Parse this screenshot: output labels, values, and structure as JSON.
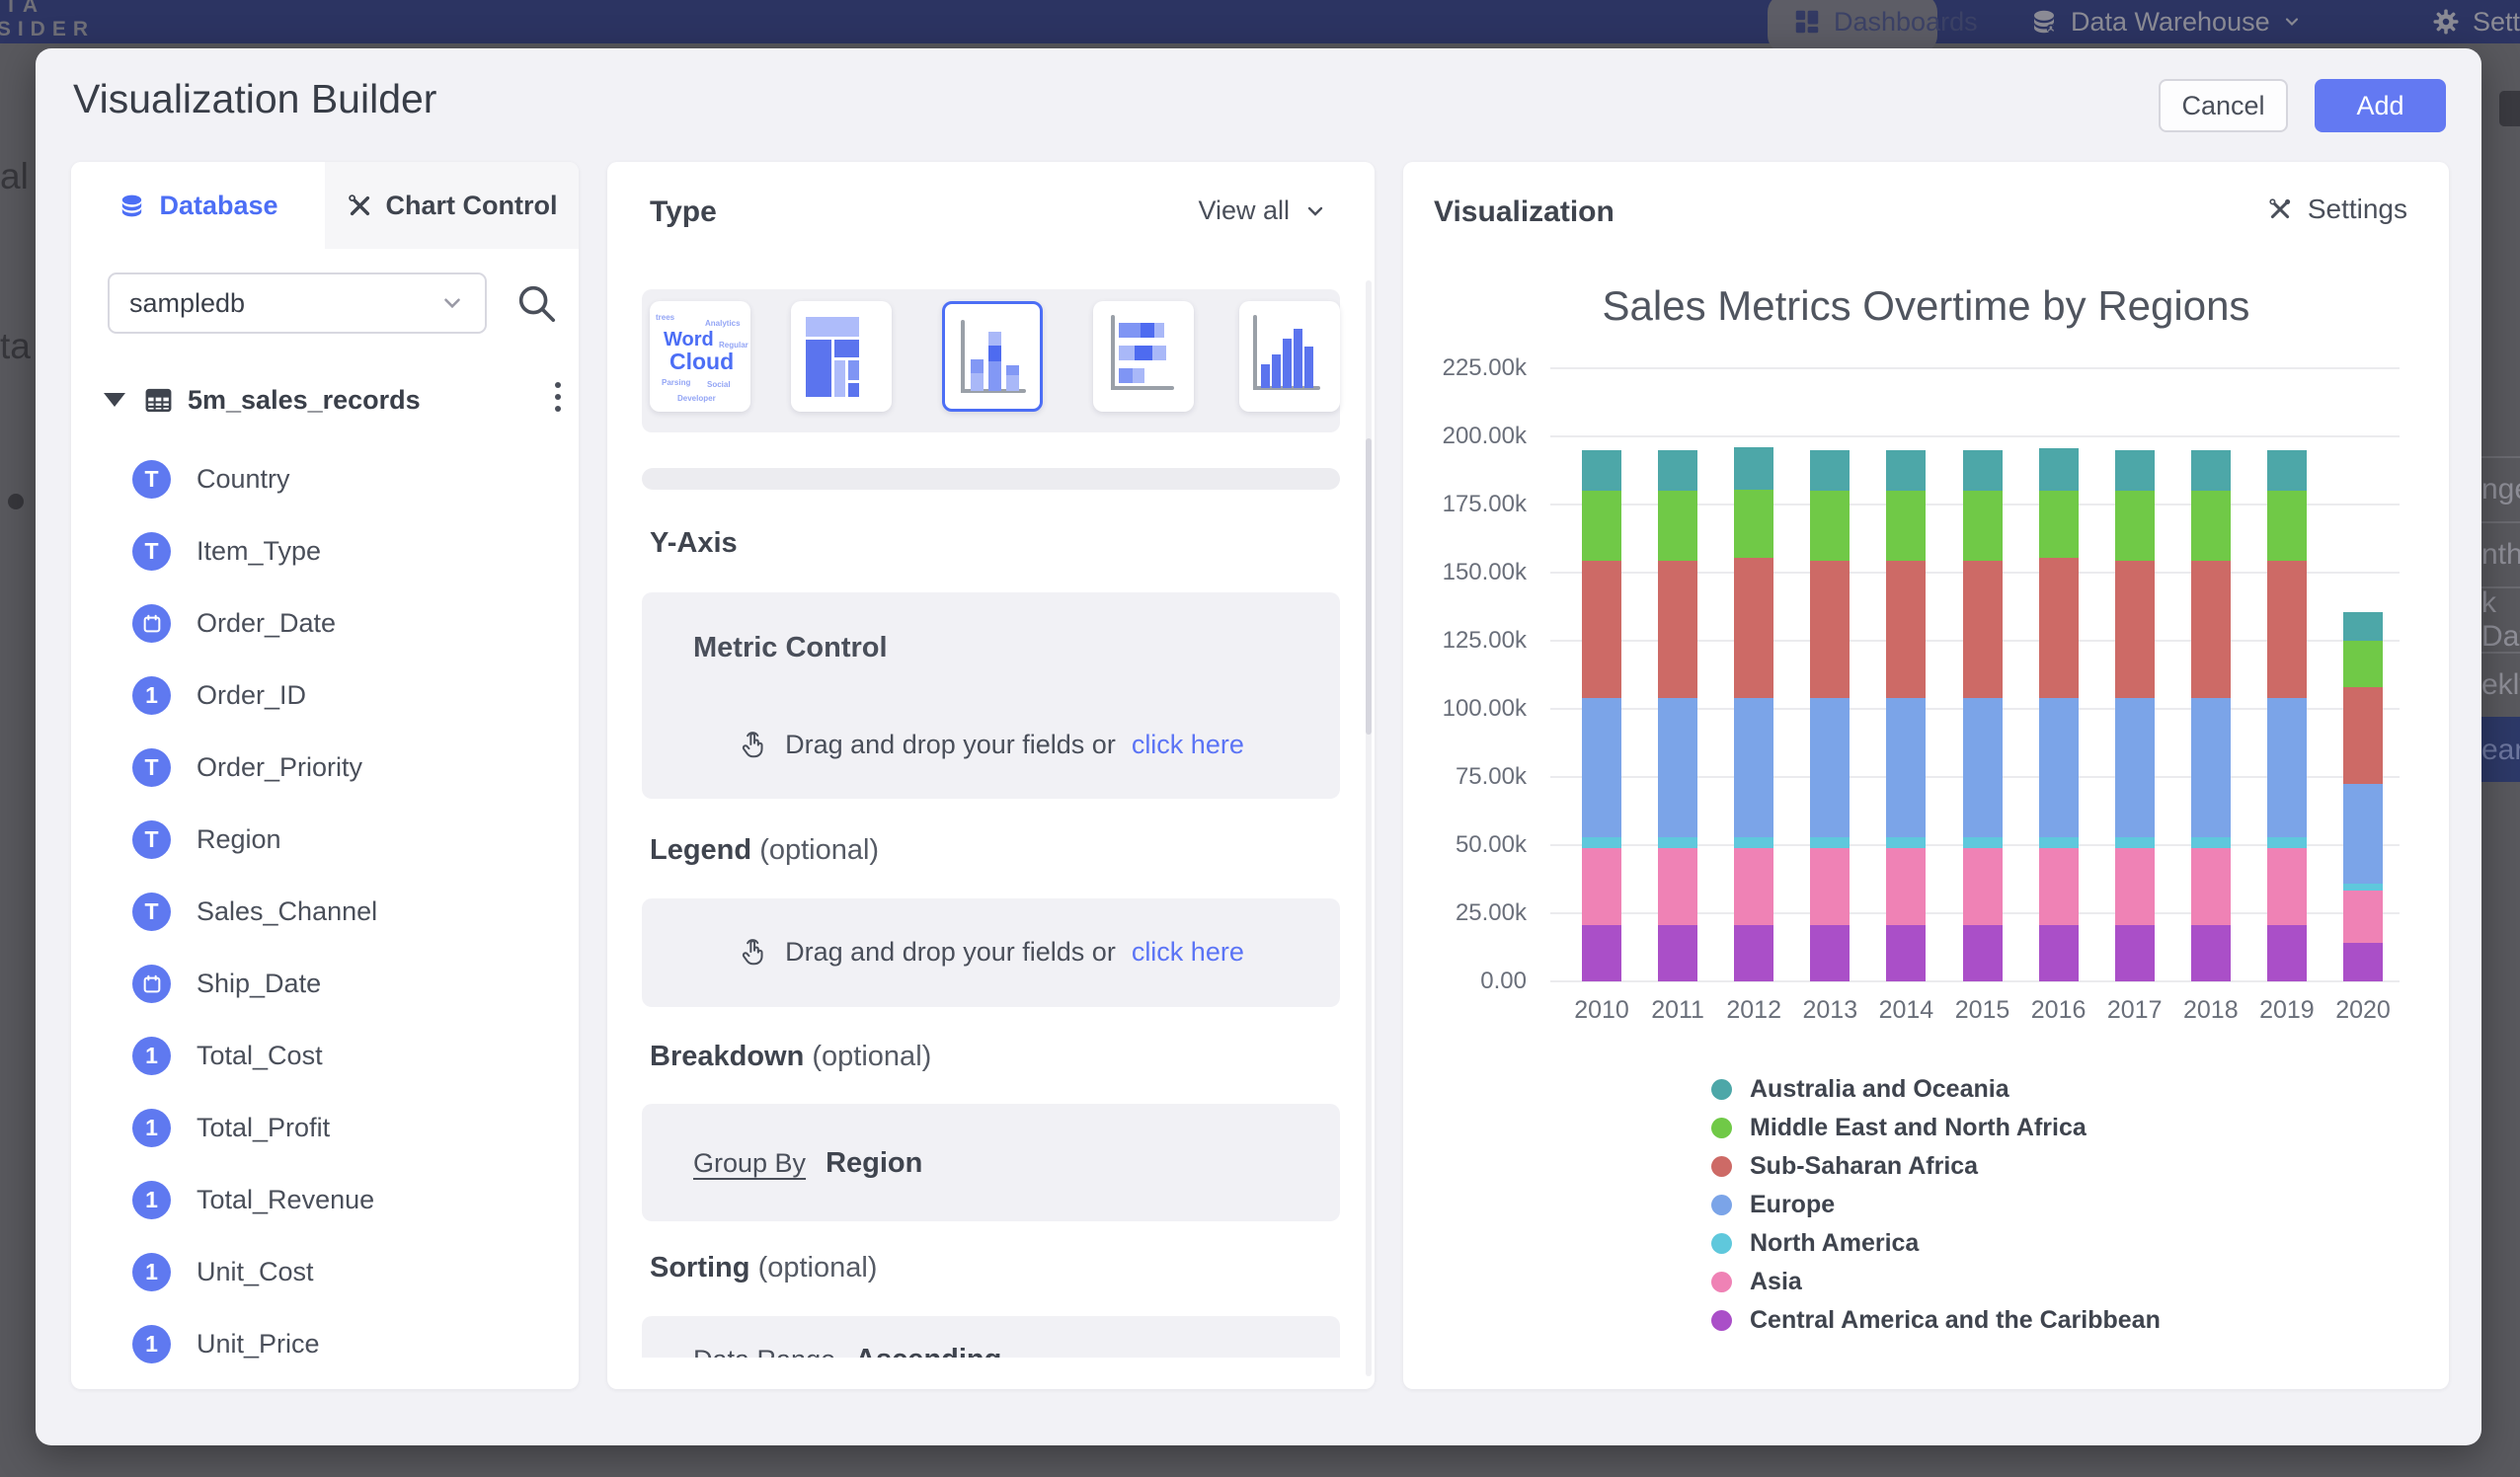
{
  "navbar": {
    "logo_line1": "ATA",
    "logo_line2": "ISIDER",
    "items": [
      {
        "label": "Dashboards"
      },
      {
        "label": "Data Warehouse"
      },
      {
        "label": "Settings"
      }
    ]
  },
  "background": {
    "left_fragments": [
      "al",
      "ta"
    ],
    "right_list": [
      "nge",
      "nthly",
      "k Date",
      "ekly",
      "ear"
    ],
    "right_list_selected_index": 4
  },
  "modal": {
    "title": "Visualization Builder",
    "cancel_label": "Cancel",
    "add_label": "Add"
  },
  "sidebar": {
    "tabs": [
      {
        "label": "Database"
      },
      {
        "label": "Chart Control"
      }
    ],
    "database_select_value": "sampledb",
    "table_name": "5m_sales_records",
    "fields": [
      {
        "name": "Country",
        "type": "text"
      },
      {
        "name": "Item_Type",
        "type": "text"
      },
      {
        "name": "Order_Date",
        "type": "date"
      },
      {
        "name": "Order_ID",
        "type": "number"
      },
      {
        "name": "Order_Priority",
        "type": "text"
      },
      {
        "name": "Region",
        "type": "text"
      },
      {
        "name": "Sales_Channel",
        "type": "text"
      },
      {
        "name": "Ship_Date",
        "type": "date"
      },
      {
        "name": "Total_Cost",
        "type": "number"
      },
      {
        "name": "Total_Profit",
        "type": "number"
      },
      {
        "name": "Total_Revenue",
        "type": "number"
      },
      {
        "name": "Unit_Cost",
        "type": "number"
      },
      {
        "name": "Unit_Price",
        "type": "number"
      }
    ]
  },
  "builder": {
    "type_label": "Type",
    "view_all_label": "View all",
    "word_cloud_big": [
      "Word",
      "Cloud"
    ],
    "word_cloud_tiny": [
      "trees",
      "Analytics",
      "Regular",
      "Parsing",
      "Social",
      "Developer"
    ],
    "y_axis_label": "Y-Axis",
    "metric_control_label": "Metric Control",
    "drag_text": "Drag and drop your fields or",
    "click_here_label": "click here",
    "legend_label": "Legend",
    "optional_suffix": "(optional)",
    "breakdown_label": "Breakdown",
    "group_by_label": "Group By",
    "group_by_value": "Region",
    "sorting_label": "Sorting",
    "data_range_label": "Data Range",
    "data_range_value": "Ascending"
  },
  "visualization": {
    "panel_title": "Visualization",
    "settings_label": "Settings"
  },
  "chart_data": {
    "type": "bar",
    "stacked": true,
    "title": "Sales Metrics Overtime by Regions",
    "categories": [
      "2010",
      "2011",
      "2012",
      "2013",
      "2014",
      "2015",
      "2016",
      "2017",
      "2018",
      "2019",
      "2020"
    ],
    "series": [
      {
        "name": "Central America and the Caribbean",
        "color": "#aa4fc8",
        "values": [
          20.5,
          20.5,
          20.5,
          20.5,
          20.5,
          20.5,
          20.5,
          20.5,
          20.5,
          20.5,
          14
        ]
      },
      {
        "name": "Asia",
        "color": "#ef82b5",
        "values": [
          28.5,
          28.5,
          28.5,
          28.5,
          28.5,
          28.5,
          28.5,
          28.5,
          28.5,
          28.5,
          19.5
        ]
      },
      {
        "name": "North America",
        "color": "#5fc8dc",
        "values": [
          4,
          4,
          4,
          4,
          4,
          4,
          4,
          4,
          4,
          4,
          2.5
        ]
      },
      {
        "name": "Europe",
        "color": "#7ba4e8",
        "values": [
          51,
          51,
          51,
          51,
          51,
          51,
          51,
          51,
          51,
          51,
          36.5
        ]
      },
      {
        "name": "Sub-Saharan Africa",
        "color": "#cd6a66",
        "values": [
          50.5,
          50.5,
          51.5,
          50.5,
          50.5,
          50.5,
          51.5,
          50.5,
          50.5,
          50.5,
          35.5
        ]
      },
      {
        "name": "Middle East and North Africa",
        "color": "#70c947",
        "values": [
          25.5,
          25.5,
          25,
          25.5,
          25.5,
          25.5,
          24.5,
          25.5,
          25.5,
          25.5,
          17
        ]
      },
      {
        "name": "Australia and Oceania",
        "color": "#4da7a8",
        "values": [
          15,
          15,
          15.5,
          15,
          15,
          15,
          15.5,
          15,
          15,
          15,
          10.5
        ]
      }
    ],
    "values_unit": "thousands",
    "ylim": [
      0,
      225
    ],
    "ytick_step": 25,
    "ytick_labels": [
      "0.00",
      "25.00k",
      "50.00k",
      "75.00k",
      "100.00k",
      "125.00k",
      "150.00k",
      "175.00k",
      "200.00k",
      "225.00k"
    ],
    "legend_position": "bottom-left",
    "legend_order": "top-of-stack-first",
    "grid": true
  }
}
